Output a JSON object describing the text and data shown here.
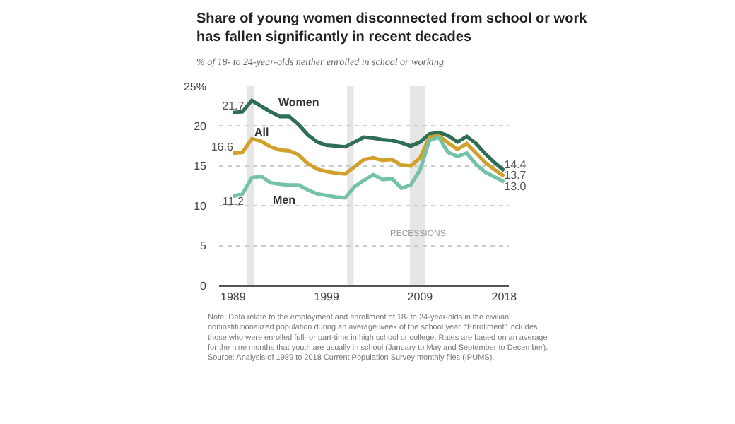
{
  "chart_data": {
    "type": "line",
    "title": "Share of young women disconnected from school or work has fallen significantly in recent decades",
    "subtitle": "% of 18- to 24-year-olds neither enrolled in school or working",
    "x": [
      1989,
      1990,
      1991,
      1992,
      1993,
      1994,
      1995,
      1996,
      1997,
      1998,
      1999,
      2000,
      2001,
      2002,
      2003,
      2004,
      2005,
      2006,
      2007,
      2008,
      2009,
      2010,
      2011,
      2012,
      2013,
      2014,
      2015,
      2016,
      2017,
      2018
    ],
    "series": [
      {
        "name": "Women",
        "color": "#2e6e57",
        "values": [
          21.7,
          21.8,
          23.2,
          22.5,
          21.8,
          21.2,
          21.2,
          20.2,
          18.9,
          18.0,
          17.6,
          17.5,
          17.4,
          18.0,
          18.6,
          18.5,
          18.3,
          18.2,
          17.9,
          17.5,
          18.0,
          19.0,
          19.2,
          18.8,
          18.0,
          18.7,
          17.8,
          16.5,
          15.4,
          14.4
        ],
        "value_labels": [
          "21.7",
          null,
          null,
          null,
          null,
          null,
          null,
          null,
          null,
          null,
          null,
          null,
          null,
          null,
          null,
          null,
          null,
          null,
          null,
          null,
          null,
          null,
          null,
          null,
          null,
          null,
          null,
          null,
          null,
          "14.4"
        ]
      },
      {
        "name": "All",
        "color": "#d1a12b",
        "values": [
          16.6,
          16.7,
          18.4,
          18.1,
          17.4,
          17.0,
          16.9,
          16.4,
          15.3,
          14.6,
          14.3,
          14.1,
          14.0,
          14.9,
          15.8,
          16.0,
          15.7,
          15.8,
          15.1,
          15.0,
          16.0,
          18.6,
          18.8,
          17.9,
          17.1,
          17.8,
          16.6,
          15.4,
          14.5,
          13.7
        ],
        "value_labels": [
          "16.6",
          null,
          null,
          null,
          null,
          null,
          null,
          null,
          null,
          null,
          null,
          null,
          null,
          null,
          null,
          null,
          null,
          null,
          null,
          null,
          null,
          null,
          null,
          null,
          null,
          null,
          null,
          null,
          null,
          "13.7"
        ]
      },
      {
        "name": "Men",
        "color": "#74c2a7",
        "values": [
          11.2,
          11.5,
          13.5,
          13.7,
          12.9,
          12.7,
          12.6,
          12.6,
          12.0,
          11.5,
          11.3,
          11.1,
          11.0,
          12.4,
          13.2,
          13.9,
          13.3,
          13.4,
          12.2,
          12.6,
          14.5,
          18.2,
          18.6,
          16.7,
          16.2,
          16.6,
          15.2,
          14.2,
          13.6,
          13.0
        ],
        "value_labels": [
          "11.2",
          null,
          null,
          null,
          null,
          null,
          null,
          null,
          null,
          null,
          null,
          null,
          null,
          null,
          null,
          null,
          null,
          null,
          null,
          null,
          null,
          null,
          null,
          null,
          null,
          null,
          null,
          null,
          null,
          "13.0"
        ]
      }
    ],
    "xlim": [
      1987.5,
      2018.5
    ],
    "xticks": [
      1989,
      1999,
      2009,
      2018
    ],
    "ylim": [
      0,
      25
    ],
    "yticks": [
      0,
      5,
      10,
      15,
      20,
      {
        "value": 25,
        "label": "25%"
      }
    ],
    "grid": "y",
    "legend": false,
    "marker": "none",
    "line_style": "solid",
    "bands": [
      {
        "axis": "x",
        "from": 1990.5,
        "to": 1991.2,
        "color": "#e6e6e6"
      },
      {
        "axis": "x",
        "from": 2001.2,
        "to": 2001.9,
        "color": "#e6e6e6"
      },
      {
        "axis": "x",
        "from": 2007.9,
        "to": 2009.5,
        "color": "#e6e6e6",
        "label": "RECESSIONS"
      }
    ],
    "annotations": [
      "Note: Data relate to the employment and enrollment of 18- to 24-year-olds in the civilian noninstitutionalized population during an average week of the school year. “Enrollment” includes those who were enrolled full- or part-time in high school or college. Rates are based on an average for the nine months that youth are usually in school (January to May and September to December).",
      "Source: Analysis of 1989 to 2018 Current Population Survey monthly files (IPUMS)."
    ]
  }
}
